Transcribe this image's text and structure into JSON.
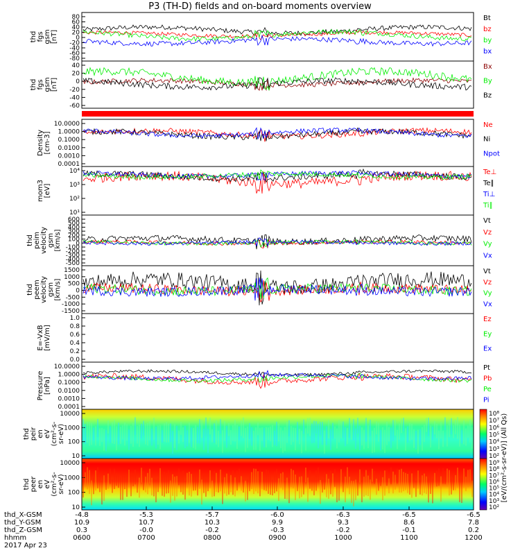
{
  "title": "P3 (TH-D) fields and on-board moments overview",
  "colors": {
    "black": "#000000",
    "red": "#ff0000",
    "green": "#00ee00",
    "blue": "#0000ff",
    "darkred": "#8b0000"
  },
  "chart_data": [
    {
      "type": "line",
      "ylabel": [
        "thd",
        "fgs",
        "gsm",
        "[nT]"
      ],
      "yticks": [
        "80",
        "60",
        "40",
        "20",
        "0",
        "-20",
        "-40",
        "-60",
        "-80"
      ],
      "ylim": [
        -80,
        80
      ],
      "series": [
        {
          "name": "Bt",
          "color": "#000000",
          "base": 22,
          "amp": 10,
          "noise": 8
        },
        {
          "name": "bz",
          "color": "#ff0000",
          "base": 8,
          "amp": 6,
          "noise": 6
        },
        {
          "name": "by",
          "color": "#00ee00",
          "base": 5,
          "amp": 12,
          "noise": 8
        },
        {
          "name": "bx",
          "color": "#0000ff",
          "base": -15,
          "amp": 8,
          "noise": 8
        }
      ]
    },
    {
      "type": "line",
      "ylabel": [
        "thd",
        "fgs",
        "gsm",
        "[nT]"
      ],
      "yticks": [
        "40",
        "20",
        "0",
        "-20",
        "-40",
        "-60"
      ],
      "ylim": [
        -70,
        50
      ],
      "series": [
        {
          "name": "Bx",
          "color": "#8b0000",
          "base": -5,
          "amp": 6,
          "noise": 6
        },
        {
          "name": "By",
          "color": "#00ee00",
          "base": 10,
          "amp": 14,
          "noise": 10
        },
        {
          "name": "Bz",
          "color": "#000000",
          "base": -8,
          "amp": 8,
          "noise": 8
        }
      ]
    },
    {
      "type": "line",
      "log": true,
      "ylabel": [
        "Density",
        "[cm-3]"
      ],
      "yticks": [
        "10.0000",
        "1.0000",
        "0.1000",
        "0.0100",
        "0.0010",
        "0.0001"
      ],
      "ylim": [
        -4,
        1
      ],
      "series": [
        {
          "name": "Ne",
          "color": "#ff0000",
          "base": -0.5,
          "amp": 0.3,
          "noise": 0.3
        },
        {
          "name": "Ni",
          "color": "#000000",
          "base": -0.6,
          "amp": 0.3,
          "noise": 0.3
        },
        {
          "name": "Npot",
          "color": "#0000ff",
          "base": -0.45,
          "amp": 0.3,
          "noise": 0.25
        }
      ]
    },
    {
      "type": "line",
      "log": true,
      "ylabel": [
        "mom3",
        "[eV]"
      ],
      "yticks": [
        "10⁴",
        "10³",
        "10²",
        "10¹"
      ],
      "ylim": [
        1,
        4
      ],
      "series": [
        {
          "name": "Te⊥",
          "color": "#ff0000",
          "base": 3.2,
          "amp": 0.25,
          "noise": 0.3
        },
        {
          "name": "Te∥",
          "color": "#000000",
          "base": 3.4,
          "amp": 0.15,
          "noise": 0.2
        },
        {
          "name": "Ti⊥",
          "color": "#0000ff",
          "base": 3.5,
          "amp": 0.1,
          "noise": 0.15
        },
        {
          "name": "Ti∥",
          "color": "#00ee00",
          "base": 3.45,
          "amp": 0.1,
          "noise": 0.15
        }
      ]
    },
    {
      "type": "line",
      "ylabel": [
        "thd",
        "peim",
        "velocity",
        "gsm",
        "[km/s]"
      ],
      "yticks": [
        "600",
        "500",
        "400",
        "300",
        "200",
        "100",
        "0",
        "-100",
        "-200",
        "-300",
        "-400",
        "-500"
      ],
      "ylim": [
        -500,
        600
      ],
      "series": [
        {
          "name": "Vt",
          "color": "#000000",
          "base": 60,
          "amp": 40,
          "noise": 70
        },
        {
          "name": "Vz",
          "color": "#ff0000",
          "base": 0,
          "amp": 20,
          "noise": 40
        },
        {
          "name": "Vy",
          "color": "#00ee00",
          "base": 0,
          "amp": 20,
          "noise": 40
        },
        {
          "name": "Vx",
          "color": "#0000ff",
          "base": 0,
          "amp": 20,
          "noise": 40
        }
      ]
    },
    {
      "type": "line",
      "ylabel": [
        "thd",
        "peem",
        "velocity",
        "gsm",
        "[km/s]"
      ],
      "yticks": [
        "1500",
        "1000",
        "500",
        "0",
        "-500",
        "-1000",
        "-1500"
      ],
      "ylim": [
        -1500,
        1500
      ],
      "series": [
        {
          "name": "Vt",
          "color": "#000000",
          "base": 400,
          "amp": 250,
          "noise": 500
        },
        {
          "name": "Vz",
          "color": "#ff0000",
          "base": 0,
          "amp": 100,
          "noise": 300
        },
        {
          "name": "Vy",
          "color": "#00ee00",
          "base": 0,
          "amp": 100,
          "noise": 300
        },
        {
          "name": "Vx",
          "color": "#0000ff",
          "base": -50,
          "amp": 100,
          "noise": 300
        }
      ]
    },
    {
      "type": "line",
      "ylabel": [
        "E=-VxB",
        "[mV/m]"
      ],
      "yticks": [
        "1.0",
        "0.8",
        "0.6",
        "0.4",
        "0.2",
        "0.0"
      ],
      "ylim": [
        0,
        1
      ],
      "series": [
        {
          "name": "Ez",
          "color": "#ff0000",
          "empty": true
        },
        {
          "name": "Ey",
          "color": "#00ee00",
          "empty": true
        },
        {
          "name": "Ex",
          "color": "#0000ff",
          "empty": true
        }
      ]
    },
    {
      "type": "line",
      "log": true,
      "ylabel": [
        "Pressure",
        "[nPa]"
      ],
      "yticks": [
        "10.0000",
        "1.0000",
        "0.1000",
        "0.0100",
        "0.0010",
        "0.0001"
      ],
      "ylim": [
        -4,
        1
      ],
      "series": [
        {
          "name": "Pt",
          "color": "#000000",
          "base": -0.15,
          "amp": 0.2,
          "noise": 0.15
        },
        {
          "name": "Pb",
          "color": "#ff0000",
          "base": -0.8,
          "amp": 0.3,
          "noise": 0.3
        },
        {
          "name": "Pe",
          "color": "#00ee00",
          "base": -0.7,
          "amp": 0.25,
          "noise": 0.2
        },
        {
          "name": "Pi",
          "color": "#0000ff",
          "base": -0.55,
          "amp": 0.2,
          "noise": 0.2
        }
      ]
    },
    {
      "type": "heatmap",
      "ylabel": [
        "thd",
        "peir",
        "en",
        "eV",
        "(cm²-s-",
        "sr-eV)"
      ],
      "yticks": [
        "10000",
        "1000",
        "100",
        "10"
      ],
      "colorbar_ticks": [
        "10⁸",
        "10⁷",
        "10⁶",
        "10⁵",
        "10⁴",
        "10³",
        "10²"
      ]
    },
    {
      "type": "heatmap",
      "ylabel": [
        "thd",
        "peer",
        "en",
        "eV",
        "(cm²-s-",
        "sr-eV)"
      ],
      "yticks": [
        "10000",
        "1000",
        "100",
        "10"
      ],
      "colorbar_ticks": [
        "10⁹",
        "10⁸",
        "10⁷",
        "10⁶",
        "10⁵",
        "10⁴",
        "10³",
        "10²"
      ]
    }
  ],
  "colorbar_label": "[eV/(cm²-s-sr-eV)] (All Qs)",
  "xaxis": {
    "rows": [
      {
        "label": "thd_X-GSM",
        "values": [
          "-4.8",
          "-5.3",
          "-5.7",
          "-6.0",
          "-6.3",
          "-6.5",
          "-6.5"
        ]
      },
      {
        "label": "thd_Y-GSM",
        "values": [
          "10.9",
          "10.7",
          "10.3",
          "9.9",
          "9.3",
          "8.6",
          "7.8"
        ]
      },
      {
        "label": "thd_Z-GSM",
        "values": [
          "0.3",
          "-0.0",
          "-0.2",
          "-0.3",
          "-0.2",
          "-0.1",
          "0.2"
        ]
      },
      {
        "label": "hhmm",
        "values": [
          "0600",
          "0700",
          "0800",
          "0900",
          "1000",
          "1100",
          "1200"
        ]
      }
    ],
    "date": "2017 Apr 23"
  }
}
